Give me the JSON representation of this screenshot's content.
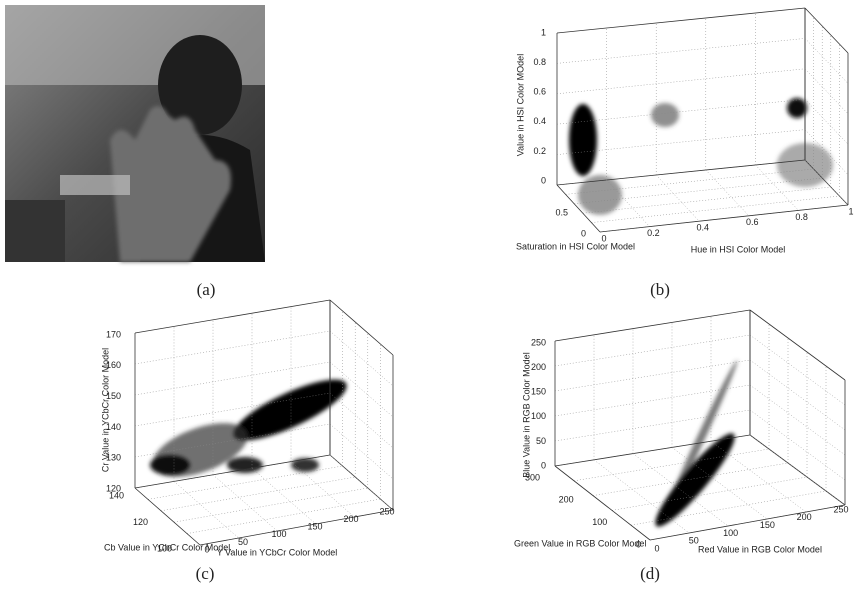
{
  "panels": [
    {
      "caption": "(a)"
    },
    {
      "caption": "(b)",
      "z_label": "Value in HSI Color MOdel",
      "depth_label": "Saturation in HSI Color Model",
      "x_label": "Hue in HSI Color Model",
      "z_ticks": [
        0,
        0.2,
        0.4,
        0.6,
        0.8,
        1
      ],
      "depth_ticks": [
        0.5,
        0
      ],
      "x_ticks": [
        0,
        0.2,
        0.4,
        0.6,
        0.8,
        1
      ]
    },
    {
      "caption": "(c)",
      "z_label": "Cr Value in YCbCr Color Model",
      "depth_label": "Cb Value in YCbCr Color Model",
      "x_label": "Y Value in YCbCr Color Model",
      "z_ticks": [
        120,
        130,
        140,
        150,
        160,
        170
      ],
      "depth_ticks": [
        140,
        120,
        100
      ],
      "x_ticks": [
        0,
        50,
        100,
        150,
        200,
        250
      ]
    },
    {
      "caption": "(d)",
      "z_label": "Blue Value in RGB Color Model",
      "depth_label": "Green Value in RGB Color Model",
      "x_label": "Red Value in RGB Color Model",
      "z_ticks": [
        0,
        50,
        100,
        150,
        200,
        250
      ],
      "depth_ticks": [
        300,
        200,
        100,
        0
      ],
      "x_ticks": [
        0,
        50,
        100,
        150,
        200,
        250
      ]
    }
  ]
}
